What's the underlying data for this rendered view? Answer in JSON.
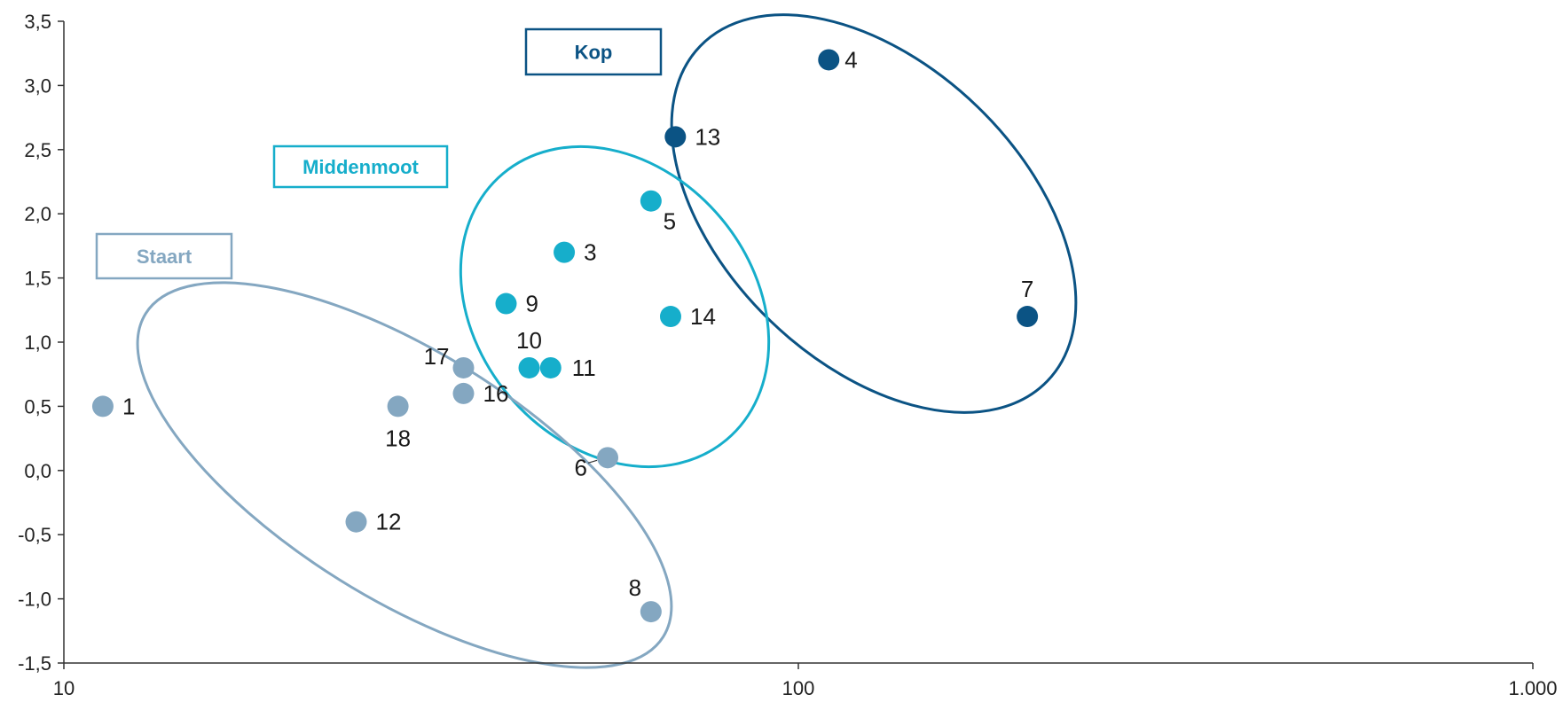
{
  "chart_data": {
    "type": "scatter",
    "title": "",
    "xlabel": "",
    "ylabel": "",
    "x_scale": "log",
    "xlim": [
      10,
      1000
    ],
    "ylim": [
      -1.5,
      3.5
    ],
    "x_ticks": [
      10,
      100,
      1000
    ],
    "x_tick_labels": [
      "10",
      "100",
      "1.000"
    ],
    "y_ticks": [
      -1.5,
      -1.0,
      -0.5,
      0.0,
      0.5,
      1.0,
      1.5,
      2.0,
      2.5,
      3.0,
      3.5
    ],
    "y_tick_labels": [
      "-1,5",
      "-1,0",
      "-0,5",
      "0,0",
      "0,5",
      "1,0",
      "1,5",
      "2,0",
      "2,5",
      "3,0",
      "3,5"
    ],
    "grid": false,
    "colors": {
      "Kop": "#0b5384",
      "Middenmoot": "#16aecb",
      "Staart": "#84a7c1"
    },
    "groups": [
      {
        "name": "Kop",
        "points": [
          {
            "label": "4",
            "x": 110,
            "y": 3.2
          },
          {
            "label": "13",
            "x": 68,
            "y": 2.6
          },
          {
            "label": "7",
            "x": 205,
            "y": 1.2
          }
        ]
      },
      {
        "name": "Middenmoot",
        "points": [
          {
            "label": "5",
            "x": 63,
            "y": 2.1
          },
          {
            "label": "3",
            "x": 48,
            "y": 1.7
          },
          {
            "label": "9",
            "x": 40,
            "y": 1.3
          },
          {
            "label": "14",
            "x": 67,
            "y": 1.2
          },
          {
            "label": "10",
            "x": 43,
            "y": 0.8
          },
          {
            "label": "11",
            "x": 46,
            "y": 0.8
          }
        ]
      },
      {
        "name": "Staart",
        "points": [
          {
            "label": "1",
            "x": 11.3,
            "y": 0.5
          },
          {
            "label": "17",
            "x": 35,
            "y": 0.8
          },
          {
            "label": "16",
            "x": 35,
            "y": 0.6
          },
          {
            "label": "18",
            "x": 28.5,
            "y": 0.5
          },
          {
            "label": "6",
            "x": 55,
            "y": 0.1
          },
          {
            "label": "12",
            "x": 25,
            "y": -0.4
          },
          {
            "label": "8",
            "x": 63,
            "y": -1.1
          }
        ]
      }
    ]
  }
}
